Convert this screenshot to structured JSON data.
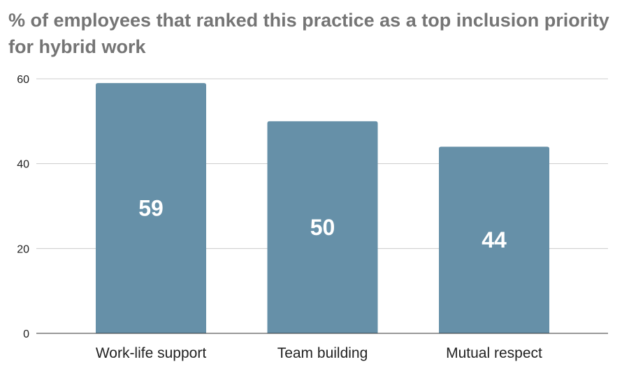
{
  "chart_data": {
    "type": "bar",
    "title": "% of employees that ranked this practice as a top inclusion priority for hybrid work",
    "categories": [
      "Work-life support",
      "Team building",
      "Mutual respect"
    ],
    "values": [
      59,
      50,
      44
    ],
    "data_labels": [
      "59",
      "50",
      "44"
    ],
    "xlabel": "",
    "ylabel": "",
    "ylim": [
      0,
      60
    ],
    "yticks": [
      0,
      20,
      40,
      60
    ],
    "ytick_labels": [
      "0",
      "20",
      "40",
      "60"
    ],
    "grid": true,
    "legend": "none",
    "bar_color": "#6690a8",
    "label_color": "#ffffff",
    "title_color": "#757575"
  }
}
